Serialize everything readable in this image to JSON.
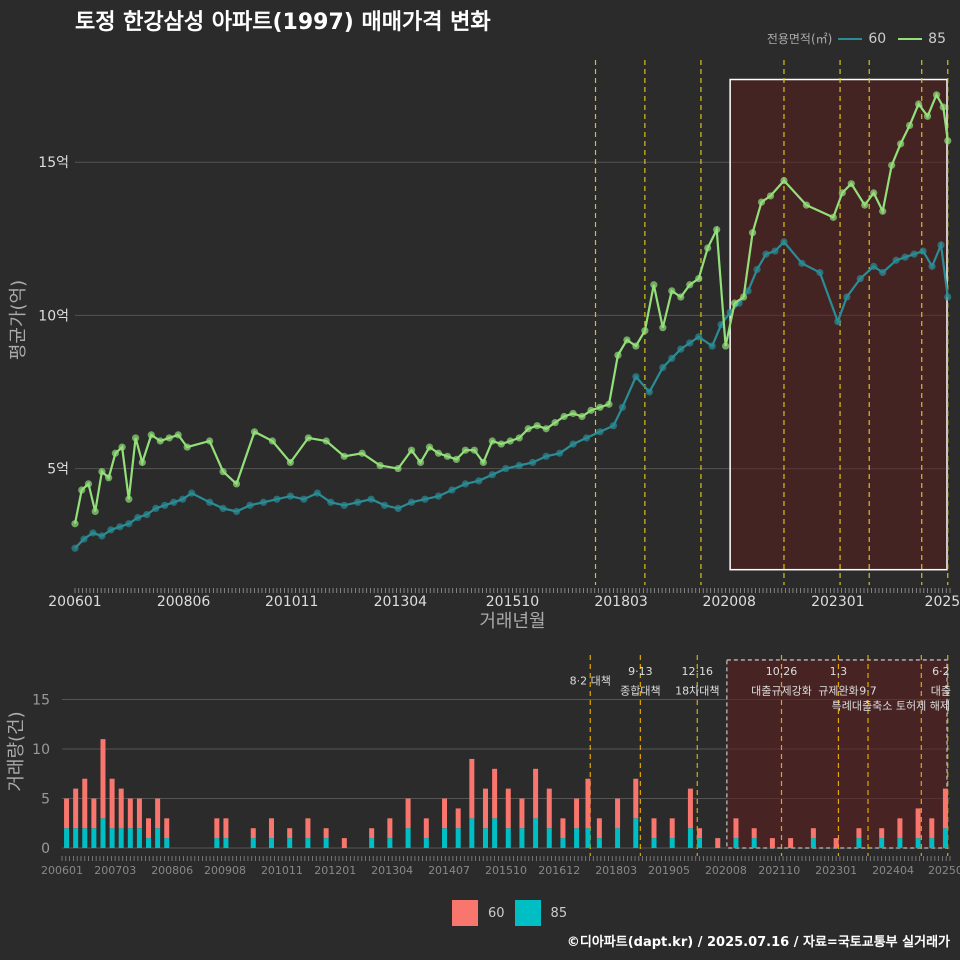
{
  "title": "토정 한강삼성 아파트(1997) 매매가격 변화",
  "legend": {
    "title": "전용면적(㎡)",
    "items": [
      {
        "label": "60",
        "color": "#2a8d96"
      },
      {
        "label": "85",
        "color": "#93e07a"
      }
    ]
  },
  "bar_legend": [
    {
      "label": "60",
      "color": "#f8766d"
    },
    {
      "label": "85",
      "color": "#00bfc4"
    }
  ],
  "footer": "©디아파트(dapt.kr) / 2025.07.16 / 자료=국토교통부 실거래가",
  "chart_data": [
    {
      "type": "line",
      "xlabel": "거래년월",
      "ylabel": "평균가(억)",
      "xlim": [
        2006.0,
        2025.5
      ],
      "ylim": [
        1.2,
        18.5
      ],
      "xticks": [
        {
          "label": "200601",
          "x": 2006.0
        },
        {
          "label": "200806",
          "x": 2008.42
        },
        {
          "label": "201011",
          "x": 2010.83
        },
        {
          "label": "201304",
          "x": 2013.25
        },
        {
          "label": "201510",
          "x": 2015.75
        },
        {
          "label": "201803",
          "x": 2018.17
        },
        {
          "label": "202008",
          "x": 2020.58
        },
        {
          "label": "202301",
          "x": 2023.0
        },
        {
          "label": "2025",
          "x": 2025.33
        }
      ],
      "yticks": [
        {
          "label": "5억",
          "value": 5
        },
        {
          "label": "10억",
          "value": 10
        },
        {
          "label": "15억",
          "value": 15
        }
      ],
      "grid": true,
      "policy_lines": [
        2017.6,
        2018.7,
        2019.95,
        2021.8,
        2023.05,
        2023.7,
        2024.87,
        2025.45
      ],
      "highlight_box": {
        "x0": 2020.6,
        "x1": 2025.5,
        "y0": 1.7,
        "y1": 17.7
      },
      "series": [
        {
          "name": "60",
          "color": "#2a8d96",
          "x": [
            2006.0,
            2006.2,
            2006.4,
            2006.6,
            2006.8,
            2007.0,
            2007.2,
            2007.4,
            2007.6,
            2007.8,
            2008.0,
            2008.2,
            2008.4,
            2008.6,
            2009.0,
            2009.3,
            2009.6,
            2009.9,
            2010.2,
            2010.5,
            2010.8,
            2011.1,
            2011.4,
            2011.7,
            2012.0,
            2012.3,
            2012.6,
            2012.9,
            2013.2,
            2013.5,
            2013.8,
            2014.1,
            2014.4,
            2014.7,
            2015.0,
            2015.3,
            2015.6,
            2015.9,
            2016.2,
            2016.5,
            2016.8,
            2017.1,
            2017.4,
            2017.7,
            2018.0,
            2018.2,
            2018.5,
            2018.8,
            2019.1,
            2019.3,
            2019.5,
            2019.7,
            2019.9,
            2020.2,
            2020.4,
            2020.6,
            2020.8,
            2021.0,
            2021.2,
            2021.4,
            2021.6,
            2021.8,
            2022.2,
            2022.6,
            2023.0,
            2023.2,
            2023.5,
            2023.8,
            2024.0,
            2024.3,
            2024.5,
            2024.7,
            2024.9,
            2025.1,
            2025.3,
            2025.45
          ],
          "values": [
            2.4,
            2.7,
            2.9,
            2.8,
            3.0,
            3.1,
            3.2,
            3.4,
            3.5,
            3.7,
            3.8,
            3.9,
            4.0,
            4.2,
            3.9,
            3.7,
            3.6,
            3.8,
            3.9,
            4.0,
            4.1,
            4.0,
            4.2,
            3.9,
            3.8,
            3.9,
            4.0,
            3.8,
            3.7,
            3.9,
            4.0,
            4.1,
            4.3,
            4.5,
            4.6,
            4.8,
            5.0,
            5.1,
            5.2,
            5.4,
            5.5,
            5.8,
            6.0,
            6.2,
            6.4,
            7.0,
            8.0,
            7.5,
            8.3,
            8.6,
            8.9,
            9.1,
            9.3,
            9.0,
            9.7,
            10.1,
            10.4,
            10.8,
            11.5,
            12.0,
            12.1,
            12.4,
            11.7,
            11.4,
            9.8,
            10.6,
            11.2,
            11.6,
            11.4,
            11.8,
            11.9,
            12.0,
            12.1,
            11.6,
            12.3,
            10.6
          ]
        },
        {
          "name": "85",
          "color": "#93e07a",
          "x": [
            2006.0,
            2006.15,
            2006.3,
            2006.45,
            2006.6,
            2006.75,
            2006.9,
            2007.05,
            2007.2,
            2007.35,
            2007.5,
            2007.7,
            2007.9,
            2008.1,
            2008.3,
            2008.5,
            2009.0,
            2009.3,
            2009.6,
            2010.0,
            2010.4,
            2010.8,
            2011.2,
            2011.6,
            2012.0,
            2012.4,
            2012.8,
            2013.2,
            2013.5,
            2013.7,
            2013.9,
            2014.1,
            2014.3,
            2014.5,
            2014.7,
            2014.9,
            2015.1,
            2015.3,
            2015.5,
            2015.7,
            2015.9,
            2016.1,
            2016.3,
            2016.5,
            2016.7,
            2016.9,
            2017.1,
            2017.3,
            2017.5,
            2017.7,
            2017.9,
            2018.1,
            2018.3,
            2018.5,
            2018.7,
            2018.9,
            2019.1,
            2019.3,
            2019.5,
            2019.7,
            2019.9,
            2020.1,
            2020.3,
            2020.5,
            2020.7,
            2020.9,
            2021.1,
            2021.3,
            2021.5,
            2021.8,
            2022.3,
            2022.9,
            2023.1,
            2023.3,
            2023.6,
            2023.8,
            2024.0,
            2024.2,
            2024.4,
            2024.6,
            2024.8,
            2025.0,
            2025.2,
            2025.35,
            2025.45
          ],
          "values": [
            3.2,
            4.3,
            4.5,
            3.6,
            4.9,
            4.7,
            5.5,
            5.7,
            4.0,
            6.0,
            5.2,
            6.1,
            5.9,
            6.0,
            6.1,
            5.7,
            5.9,
            4.9,
            4.5,
            6.2,
            5.9,
            5.2,
            6.0,
            5.9,
            5.4,
            5.5,
            5.1,
            5.0,
            5.6,
            5.2,
            5.7,
            5.5,
            5.4,
            5.3,
            5.6,
            5.6,
            5.2,
            5.9,
            5.8,
            5.9,
            6.0,
            6.3,
            6.4,
            6.3,
            6.5,
            6.7,
            6.8,
            6.7,
            6.9,
            7.0,
            7.1,
            8.7,
            9.2,
            9.0,
            9.5,
            11.0,
            9.6,
            10.8,
            10.6,
            11.0,
            11.2,
            12.2,
            12.8,
            9.0,
            10.4,
            10.6,
            12.7,
            13.7,
            13.9,
            14.4,
            13.6,
            13.2,
            14.0,
            14.3,
            13.6,
            14.0,
            13.4,
            14.9,
            15.6,
            16.2,
            16.9,
            16.5,
            17.2,
            16.8,
            15.7
          ]
        }
      ]
    },
    {
      "type": "bar",
      "stacked": true,
      "ylabel": "거래량(건)",
      "xlim": [
        2006.0,
        2025.5
      ],
      "ylim": [
        0,
        19.5
      ],
      "yticks": [
        {
          "label": "0",
          "value": 0
        },
        {
          "label": "5",
          "value": 5
        },
        {
          "label": "10",
          "value": 10
        },
        {
          "label": "15",
          "value": 15
        }
      ],
      "xticks": [
        {
          "label": "200601",
          "x": 2006.0
        },
        {
          "label": "200703",
          "x": 2007.17
        },
        {
          "label": "200806",
          "x": 2008.42
        },
        {
          "label": "200908",
          "x": 2009.58
        },
        {
          "label": "201011",
          "x": 2010.83
        },
        {
          "label": "201201",
          "x": 2012.0
        },
        {
          "label": "201304",
          "x": 2013.25
        },
        {
          "label": "201407",
          "x": 2014.5
        },
        {
          "label": "201510",
          "x": 2015.75
        },
        {
          "label": "201612",
          "x": 2016.92
        },
        {
          "label": "201803",
          "x": 2018.17
        },
        {
          "label": "201905",
          "x": 2019.33
        },
        {
          "label": "202008",
          "x": 2020.58
        },
        {
          "label": "202110",
          "x": 2021.75
        },
        {
          "label": "202301",
          "x": 2023.0
        },
        {
          "label": "202404",
          "x": 2024.25
        },
        {
          "label": "20250",
          "x": 2025.4
        }
      ],
      "policy_lines": [
        2017.6,
        2018.7,
        2019.95,
        2021.8,
        2023.05,
        2023.7,
        2024.87,
        2025.45
      ],
      "highlight_box": {
        "x0": 2020.6,
        "x1": 2025.5,
        "y0": 0,
        "y1": 19
      },
      "annotations": [
        {
          "text": "8·2 대책",
          "x": 2017.6,
          "y": 17
        },
        {
          "text": "9·13",
          "x": 2018.7,
          "y": 18
        },
        {
          "text": "종합대책",
          "x": 2018.7,
          "y": 16
        },
        {
          "text": "12·16",
          "x": 2019.95,
          "y": 18
        },
        {
          "text": "18차대책",
          "x": 2019.95,
          "y": 16
        },
        {
          "text": "10.26",
          "x": 2021.8,
          "y": 18
        },
        {
          "text": "대출규제강화",
          "x": 2021.8,
          "y": 16
        },
        {
          "text": "1.3",
          "x": 2023.05,
          "y": 18
        },
        {
          "text": "규제완화",
          "x": 2023.05,
          "y": 16
        },
        {
          "text": "9·7",
          "x": 2023.7,
          "y": 16
        },
        {
          "text": "특례대출축소 토허제 해제",
          "x": 2024.2,
          "y": 14.5
        },
        {
          "text": "6·2",
          "x": 2025.3,
          "y": 18
        },
        {
          "text": "대출",
          "x": 2025.3,
          "y": 16
        }
      ],
      "series": [
        {
          "name": "60",
          "color": "#f8766d",
          "x": [
            2006.1,
            2006.3,
            2006.5,
            2006.7,
            2006.9,
            2007.1,
            2007.3,
            2007.5,
            2007.7,
            2007.9,
            2008.1,
            2008.3,
            2009.4,
            2009.6,
            2010.2,
            2010.6,
            2011.0,
            2011.4,
            2011.8,
            2012.2,
            2012.8,
            2013.2,
            2013.6,
            2014.0,
            2014.4,
            2014.7,
            2015.0,
            2015.3,
            2015.5,
            2015.8,
            2016.1,
            2016.4,
            2016.7,
            2017.0,
            2017.3,
            2017.55,
            2017.8,
            2018.2,
            2018.6,
            2019.0,
            2019.4,
            2019.8,
            2020.0,
            2020.4,
            2020.8,
            2021.2,
            2021.6,
            2022.0,
            2022.5,
            2023.0,
            2023.5,
            2024.0,
            2024.4,
            2024.8,
            2025.1,
            2025.4
          ],
          "values": [
            3,
            4,
            5,
            3,
            8,
            5,
            4,
            3,
            3,
            2,
            3,
            2,
            2,
            2,
            1,
            2,
            1,
            2,
            1,
            1,
            1,
            2,
            3,
            2,
            3,
            2,
            6,
            4,
            5,
            4,
            3,
            5,
            4,
            2,
            3,
            5,
            2,
            3,
            4,
            2,
            2,
            4,
            1,
            1,
            2,
            1,
            1,
            1,
            1,
            1,
            1,
            1,
            2,
            3,
            2,
            4
          ]
        },
        {
          "name": "85",
          "color": "#00bfc4",
          "x": [
            2006.1,
            2006.3,
            2006.5,
            2006.7,
            2006.9,
            2007.1,
            2007.3,
            2007.5,
            2007.7,
            2007.9,
            2008.1,
            2008.3,
            2009.4,
            2009.6,
            2010.2,
            2010.6,
            2011.0,
            2011.4,
            2011.8,
            2012.2,
            2012.8,
            2013.2,
            2013.6,
            2014.0,
            2014.4,
            2014.7,
            2015.0,
            2015.3,
            2015.5,
            2015.8,
            2016.1,
            2016.4,
            2016.7,
            2017.0,
            2017.3,
            2017.55,
            2017.8,
            2018.2,
            2018.6,
            2019.0,
            2019.4,
            2019.8,
            2020.0,
            2020.4,
            2020.8,
            2021.2,
            2021.6,
            2022.0,
            2022.5,
            2023.0,
            2023.5,
            2024.0,
            2024.4,
            2024.8,
            2025.1,
            2025.4
          ],
          "values": [
            2,
            2,
            2,
            2,
            3,
            2,
            2,
            2,
            2,
            1,
            2,
            1,
            1,
            1,
            1,
            1,
            1,
            1,
            1,
            0,
            1,
            1,
            2,
            1,
            2,
            2,
            3,
            2,
            3,
            2,
            2,
            3,
            2,
            1,
            2,
            2,
            1,
            2,
            3,
            1,
            1,
            2,
            1,
            0,
            1,
            1,
            0,
            0,
            1,
            0,
            1,
            1,
            1,
            1,
            1,
            2
          ]
        }
      ]
    }
  ]
}
